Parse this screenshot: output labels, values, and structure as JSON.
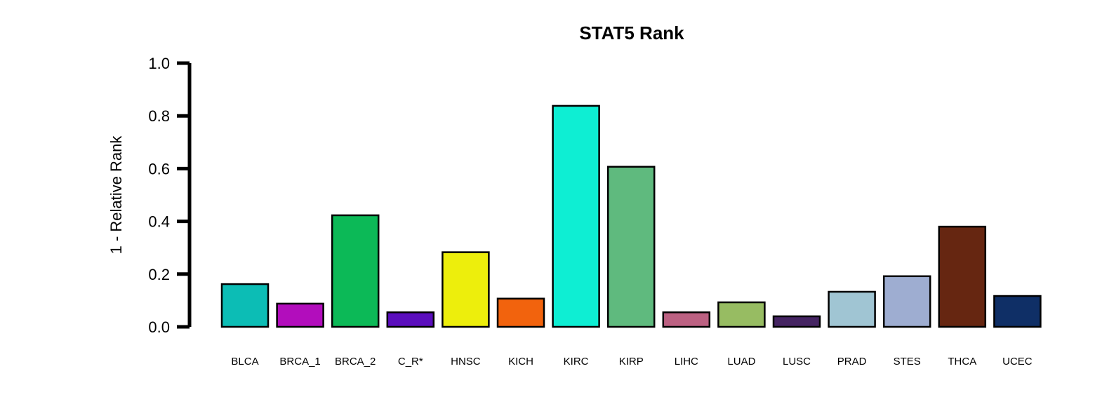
{
  "chart_data": {
    "type": "bar",
    "title": "STAT5 Rank",
    "xlabel": "",
    "ylabel": "1 - Relative Rank",
    "ylim": [
      0,
      1
    ],
    "yticks": [
      "0.0",
      "0.2",
      "0.4",
      "0.6",
      "0.8",
      "1.0"
    ],
    "grid": false,
    "categories": [
      "BLCA",
      "BRCA_1",
      "BRCA_2",
      "C_R*",
      "HNSC",
      "KICH",
      "KIRC",
      "KIRP",
      "LIHC",
      "LUAD",
      "LUSC",
      "PRAD",
      "STES",
      "THCA",
      "UCEC"
    ],
    "values": [
      0.162,
      0.088,
      0.423,
      0.055,
      0.283,
      0.107,
      0.838,
      0.607,
      0.055,
      0.093,
      0.04,
      0.133,
      0.192,
      0.38,
      0.117
    ],
    "colors": [
      "#0CBDB5",
      "#B20DBC",
      "#0CB957",
      "#5B0EBD",
      "#EDEE0C",
      "#F2630D",
      "#0EEED3",
      "#5FBA7E",
      "#BC6182",
      "#97BC62",
      "#452462",
      "#A0C5D3",
      "#9EADD1",
      "#662611",
      "#0F2F66"
    ]
  }
}
